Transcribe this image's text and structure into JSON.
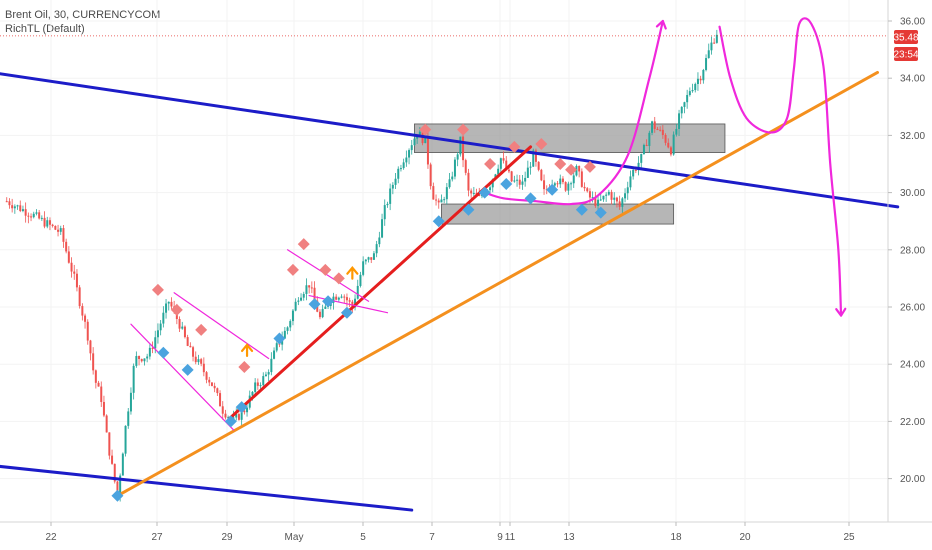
{
  "legend": {
    "symbol": "Brent Oil, 30, CURRENCYCOM",
    "indicator": "RichTL (Default)"
  },
  "price_labels": {
    "last_price": "35.48",
    "countdown": "23:54"
  },
  "colors": {
    "up": "#26a69a",
    "down": "#ef5350",
    "trend_blue": "#1c1cc8",
    "trend_orange": "#f4901e",
    "trend_red": "#e51e1e",
    "magenta": "#f028dc",
    "box": "#9e9e9e",
    "marker_red": "#f08080",
    "marker_blue": "#4aa3df",
    "arrow": "#ff9800",
    "price_line": "#e53935"
  },
  "chart_data": {
    "type": "candlestick",
    "title": "Brent Oil, 30, CURRENCYCOM",
    "ylim": [
      18.5,
      36.4
    ],
    "y_ticks": [
      "20.00",
      "22.00",
      "24.00",
      "26.00",
      "28.00",
      "30.00",
      "32.00",
      "34.00",
      "36.00"
    ],
    "x_ticks": [
      "22",
      "27",
      "29",
      "May",
      "5",
      "7",
      "9",
      "11",
      "13",
      "18",
      "20",
      "25"
    ],
    "price_path": [
      [
        0,
        29.7
      ],
      [
        2,
        29.2
      ],
      [
        4,
        28.6
      ],
      [
        5,
        27.0
      ],
      [
        6,
        25.0
      ],
      [
        6.5,
        23.5
      ],
      [
        7,
        22.8
      ],
      [
        7.4,
        21.5
      ],
      [
        7.8,
        20.4
      ],
      [
        8.2,
        19.4
      ],
      [
        8.8,
        21.8
      ],
      [
        9.5,
        24.2
      ],
      [
        10.5,
        24.3
      ],
      [
        11.2,
        25.2
      ],
      [
        12,
        26.2
      ],
      [
        12.8,
        25.4
      ],
      [
        13.5,
        24.5
      ],
      [
        14.4,
        23.9
      ],
      [
        15.2,
        23.3
      ],
      [
        16,
        22.4
      ],
      [
        16.8,
        22.0
      ],
      [
        17.6,
        22.4
      ],
      [
        18.4,
        23.2
      ],
      [
        19.2,
        23.6
      ],
      [
        20,
        24.6
      ],
      [
        20.8,
        25.3
      ],
      [
        21.6,
        26.4
      ],
      [
        22.4,
        26.8
      ],
      [
        23.2,
        25.6
      ],
      [
        24,
        26.3
      ],
      [
        24.8,
        26.5
      ],
      [
        25.6,
        26.0
      ],
      [
        26.4,
        27.5
      ],
      [
        27.2,
        27.8
      ],
      [
        28,
        29.4
      ],
      [
        28.8,
        30.6
      ],
      [
        29.6,
        31.4
      ],
      [
        30.4,
        32.1
      ],
      [
        31,
        31.8
      ],
      [
        31.5,
        30.0
      ],
      [
        32,
        29.5
      ],
      [
        32.8,
        30.3
      ],
      [
        33.6,
        31.8
      ],
      [
        34.2,
        30.0
      ],
      [
        35,
        29.8
      ],
      [
        35.8,
        30.3
      ],
      [
        36.6,
        31.2
      ],
      [
        37.4,
        30.4
      ],
      [
        38.2,
        30.3
      ],
      [
        39,
        31.3
      ],
      [
        39.8,
        30.0
      ],
      [
        40.6,
        30.5
      ],
      [
        41.4,
        30.2
      ],
      [
        42.2,
        30.8
      ],
      [
        43,
        29.9
      ],
      [
        43.8,
        29.6
      ],
      [
        44.6,
        30.0
      ],
      [
        45.4,
        29.5
      ],
      [
        46.2,
        30.6
      ],
      [
        47,
        31.2
      ],
      [
        47.8,
        32.4
      ],
      [
        48.6,
        32.0
      ],
      [
        49.2,
        31.5
      ],
      [
        49.8,
        32.6
      ],
      [
        50.6,
        33.6
      ],
      [
        51.4,
        34.1
      ],
      [
        52.2,
        35.2
      ],
      [
        52.8,
        35.8
      ]
    ],
    "markers_sell": [
      [
        11.2,
        26.6
      ],
      [
        12.6,
        25.9
      ],
      [
        14.4,
        25.2
      ],
      [
        17.6,
        23.9
      ],
      [
        22.0,
        28.2
      ],
      [
        21.2,
        27.3
      ],
      [
        23.6,
        27.3
      ],
      [
        24.6,
        27.0
      ],
      [
        31.0,
        32.2
      ],
      [
        33.8,
        32.2
      ],
      [
        35.8,
        31.0
      ],
      [
        37.6,
        31.6
      ],
      [
        39.6,
        31.7
      ],
      [
        41.0,
        31.0
      ],
      [
        41.8,
        30.8
      ],
      [
        43.2,
        30.9
      ]
    ],
    "markers_buy": [
      [
        8.2,
        19.4
      ],
      [
        11.6,
        24.4
      ],
      [
        13.4,
        23.8
      ],
      [
        16.6,
        22.0
      ],
      [
        17.4,
        22.5
      ],
      [
        20.2,
        24.9
      ],
      [
        22.8,
        26.1
      ],
      [
        23.8,
        26.2
      ],
      [
        25.2,
        25.8
      ],
      [
        32.0,
        29.0
      ],
      [
        34.2,
        29.4
      ],
      [
        35.4,
        30.0
      ],
      [
        37.0,
        30.3
      ],
      [
        38.8,
        29.8
      ],
      [
        40.4,
        30.1
      ],
      [
        42.6,
        29.4
      ],
      [
        44.0,
        29.3
      ]
    ],
    "markers_arrow": [
      [
        17.8,
        24.5
      ],
      [
        25.6,
        27.2
      ]
    ],
    "trend_lines": [
      {
        "color_key": "trend_blue",
        "points": [
          [
            -4,
            34.4
          ],
          [
            66,
            29.5
          ]
        ]
      },
      {
        "color_key": "trend_blue",
        "points": [
          [
            -4,
            20.6
          ],
          [
            30,
            18.9
          ]
        ]
      },
      {
        "color_key": "trend_orange",
        "points": [
          [
            8.2,
            19.4
          ],
          [
            64.5,
            34.2
          ]
        ]
      },
      {
        "color_key": "trend_red",
        "points": [
          [
            16.5,
            22.1
          ],
          [
            38.8,
            31.6
          ]
        ]
      },
      {
        "color_key": "magenta",
        "points": [
          [
            9.2,
            25.4
          ],
          [
            16.8,
            21.7
          ]
        ]
      },
      {
        "color_key": "magenta",
        "points": [
          [
            12.4,
            26.5
          ],
          [
            19.4,
            24.2
          ]
        ]
      },
      {
        "color_key": "magenta",
        "points": [
          [
            20.8,
            28.0
          ],
          [
            26.8,
            26.2
          ]
        ]
      },
      {
        "color_key": "magenta",
        "points": [
          [
            22.4,
            26.4
          ],
          [
            28.2,
            25.8
          ]
        ]
      }
    ],
    "rect_zones": [
      {
        "x1": 30.2,
        "x2": 53.2,
        "y1": 31.4,
        "y2": 32.4
      },
      {
        "x1": 32.2,
        "x2": 49.4,
        "y1": 28.9,
        "y2": 29.6
      }
    ],
    "projection_paths": [
      [
        [
          35.4,
          30.0
        ],
        [
          36.8,
          29.8
        ],
        [
          39.2,
          29.7
        ],
        [
          41.8,
          29.6
        ],
        [
          43.8,
          29.9
        ],
        [
          46.0,
          31.3
        ],
        [
          47.6,
          34.0
        ],
        [
          48.6,
          36.0
        ]
      ],
      [
        [
          52.8,
          35.8
        ],
        [
          53.6,
          34.0
        ],
        [
          54.8,
          32.6
        ],
        [
          56.6,
          32.1
        ],
        [
          57.8,
          32.6
        ],
        [
          58.3,
          34.3
        ],
        [
          58.7,
          35.9
        ],
        [
          59.6,
          35.9
        ],
        [
          60.5,
          34.4
        ],
        [
          61.0,
          31.0
        ],
        [
          61.6,
          28.0
        ],
        [
          61.8,
          25.7
        ]
      ]
    ],
    "current_price": 35.48
  }
}
